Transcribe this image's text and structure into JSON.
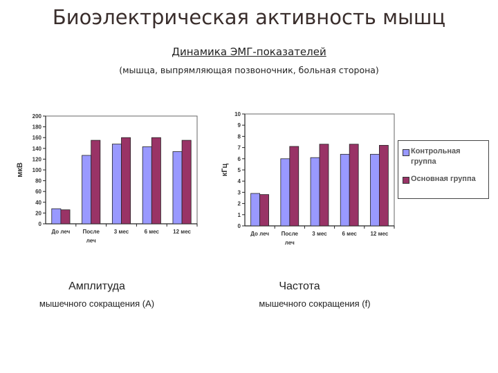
{
  "page": {
    "title": "Биоэлектрическая активность мышц",
    "subtitle": "Динамика ЭМГ-показателей",
    "subnote": "(мышца, выпрямляющая позвоночник, больная сторона)"
  },
  "colors": {
    "control": "#9999ff",
    "main": "#993366"
  },
  "legend": {
    "items": [
      {
        "label_line1": "Контрольная",
        "label_line2": "группа"
      },
      {
        "label_line1": "Основная группа",
        "label_line2": ""
      }
    ]
  },
  "captions": {
    "left_main": "Амплитуда",
    "left_sub": "мышечного сокращения (А)",
    "right_main": "Частота",
    "right_sub": "мышечного сокращения (f)"
  },
  "chart_data": [
    {
      "type": "bar",
      "categories": [
        "До леч",
        "После леч",
        "3 мес",
        "6 мес",
        "12 мес"
      ],
      "series": [
        {
          "name": "Контрольная группа",
          "values": [
            28,
            127,
            148,
            143,
            134
          ]
        },
        {
          "name": "Основная группа",
          "values": [
            26,
            155,
            160,
            160,
            155
          ]
        }
      ],
      "ylabel": "мкВ",
      "xlabel": "",
      "title": "",
      "ylim": [
        0,
        200
      ],
      "yticks": [
        0,
        20,
        40,
        60,
        80,
        100,
        120,
        140,
        160,
        180,
        200
      ],
      "grid": false,
      "legend": "none"
    },
    {
      "type": "bar",
      "categories": [
        "До леч",
        "После леч",
        "3 мес",
        "6 мес",
        "12 мес"
      ],
      "series": [
        {
          "name": "Контрольная группа",
          "values": [
            2.9,
            6.0,
            6.1,
            6.4,
            6.4
          ]
        },
        {
          "name": "Основная группа",
          "values": [
            2.8,
            7.1,
            7.3,
            7.3,
            7.2
          ]
        }
      ],
      "ylabel": "кГц",
      "xlabel": "",
      "title": "",
      "ylim": [
        0,
        10
      ],
      "yticks": [
        0,
        1,
        2,
        3,
        4,
        5,
        6,
        7,
        8,
        9,
        10
      ],
      "grid": false,
      "legend": "right"
    }
  ]
}
